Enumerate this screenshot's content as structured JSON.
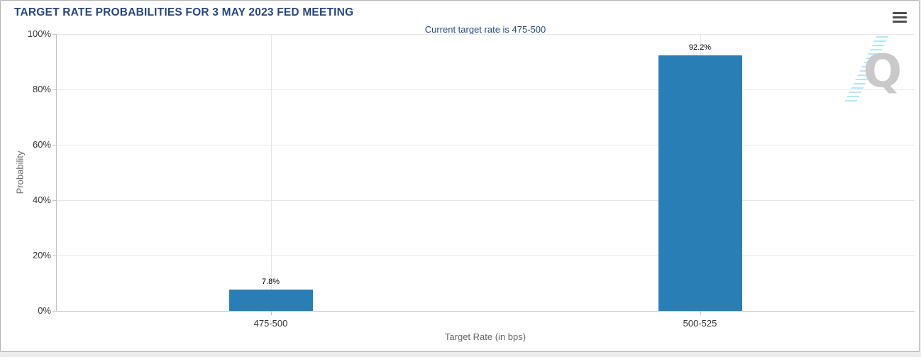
{
  "header": {
    "title": "TARGET RATE PROBABILITIES FOR 3 MAY 2023 FED MEETING",
    "menu_icon": "hamburger-icon"
  },
  "chart_data": {
    "type": "bar",
    "title": "TARGET RATE PROBABILITIES FOR 3 MAY 2023 FED MEETING",
    "subtitle": "Current target rate is 475-500",
    "categories": [
      "475-500",
      "500-525"
    ],
    "values": [
      7.8,
      92.2
    ],
    "data_labels": [
      "7.8%",
      "92.2%"
    ],
    "xlabel": "Target Rate (in bps)",
    "ylabel": "Probability",
    "ylim": [
      0,
      100
    ],
    "ytick_step": 20,
    "ytick_labels": [
      "0%",
      "20%",
      "40%",
      "60%",
      "80%",
      "100%"
    ],
    "grid": true,
    "legend": false,
    "bar_color": "#2a7eb6",
    "colors": {
      "title": "#28467e",
      "subtitle": "#274a7d",
      "gridline": "#e6e6e6",
      "axis_line": "#c3c3c3",
      "tick_label": "#333333",
      "axis_title": "#666666",
      "data_label": "#000000"
    }
  },
  "watermark": {
    "letter": "Q"
  }
}
